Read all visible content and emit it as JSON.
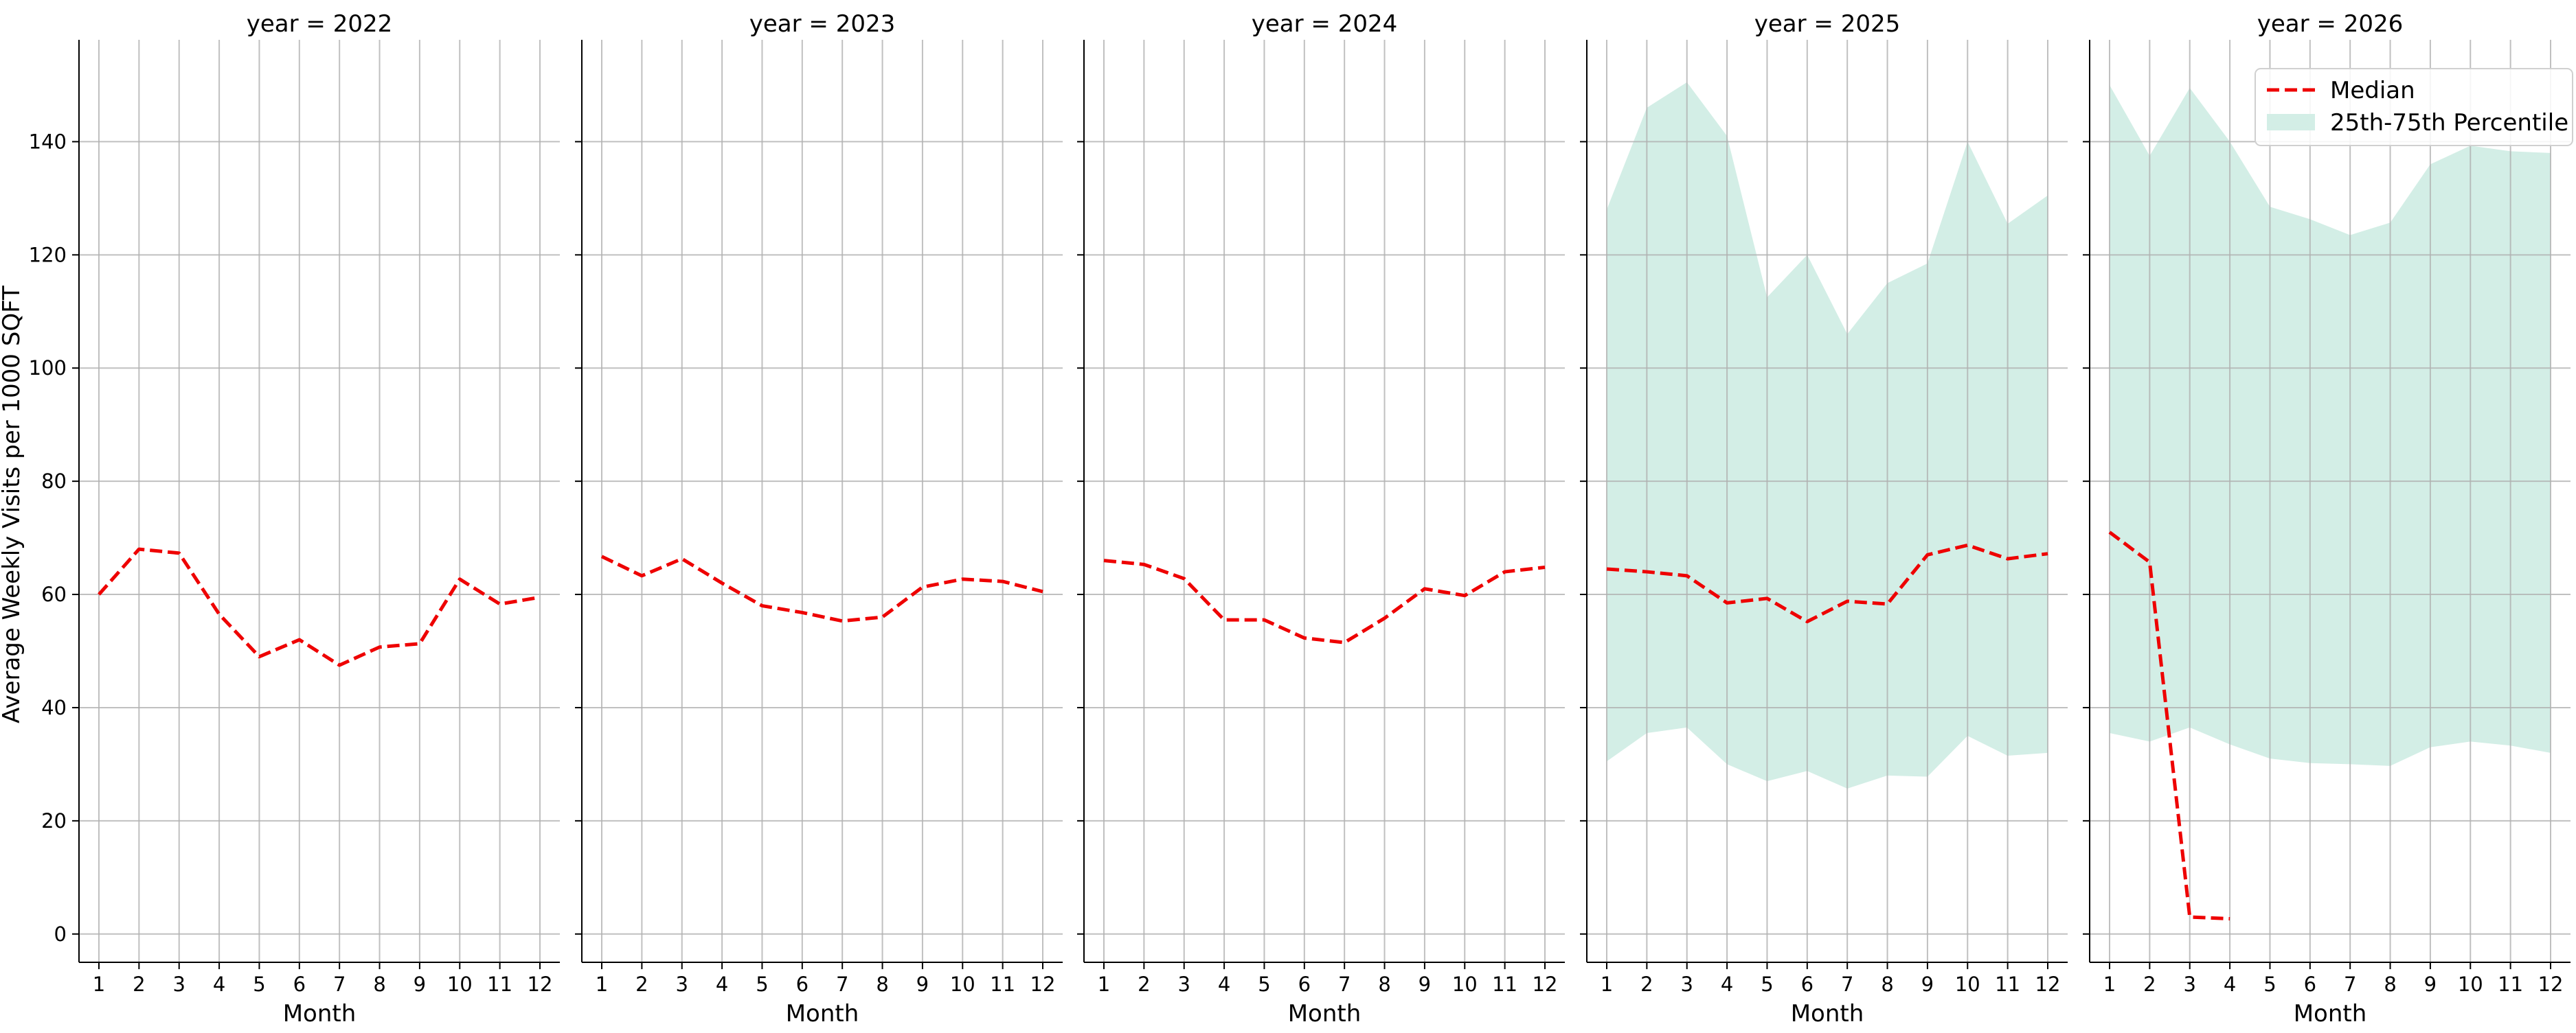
{
  "chart_data": {
    "type": "line",
    "ylabel": "Average Weekly Visits per 1000 SQFT",
    "xlabel": "Month",
    "x": [
      1,
      2,
      3,
      4,
      5,
      6,
      7,
      8,
      9,
      10,
      11,
      12
    ],
    "x_ticks": [
      "1",
      "2",
      "3",
      "4",
      "5",
      "6",
      "7",
      "8",
      "9",
      "10",
      "11",
      "12"
    ],
    "ylim": [
      -5,
      158
    ],
    "y_ticks": [
      0,
      20,
      40,
      60,
      80,
      100,
      120,
      140
    ],
    "y_tick_labels": [
      "0",
      "20",
      "40",
      "60",
      "80",
      "100",
      "120",
      "140"
    ],
    "grid": true,
    "colors": {
      "median": "#ee0000",
      "band": "#d3eee6",
      "grid": "#b0b0b0",
      "axis": "#000000"
    },
    "legend": {
      "placement": "top-right",
      "panel_index": 4,
      "entries": [
        "Median",
        "25th-75th Percentile"
      ]
    },
    "panels": [
      {
        "title": "year = 2022",
        "median": [
          60,
          68,
          67.3,
          56.5,
          49,
          52,
          47.5,
          50.7,
          51.3,
          62.7,
          58.3,
          59.5
        ]
      },
      {
        "title": "year = 2023",
        "median": [
          66.7,
          63.3,
          66.3,
          62,
          58,
          56.8,
          55.3,
          56,
          61.3,
          62.7,
          62.3,
          60.5
        ]
      },
      {
        "title": "year = 2024",
        "median": [
          66,
          65.3,
          62.8,
          55.5,
          55.5,
          52.3,
          51.5,
          55.8,
          61,
          59.8,
          64,
          64.8
        ]
      },
      {
        "title": "year = 2025",
        "median": [
          64.5,
          64,
          63.3,
          58.5,
          59.3,
          55.2,
          58.8,
          58.3,
          67,
          68.7,
          66.3,
          67.2
        ],
        "p25": [
          30.5,
          35.5,
          36.5,
          30,
          27,
          28.8,
          25.7,
          28,
          27.8,
          35,
          31.5,
          32
        ],
        "p75": [
          128,
          146,
          150.5,
          141,
          112.5,
          120,
          106,
          115,
          118.5,
          140,
          125.5,
          130.5
        ]
      },
      {
        "title": "year = 2026",
        "median": [
          71,
          65.7,
          3,
          2.7,
          null,
          null,
          null,
          null,
          null,
          null,
          null,
          null
        ],
        "p25": [
          35.5,
          34,
          36.5,
          33.5,
          31,
          30.2,
          30,
          29.7,
          33,
          34,
          33.3,
          32
        ],
        "p75": [
          150,
          137.5,
          149.5,
          140,
          128.5,
          126.3,
          123.5,
          125.7,
          136,
          139.3,
          138.3,
          138
        ]
      }
    ]
  }
}
